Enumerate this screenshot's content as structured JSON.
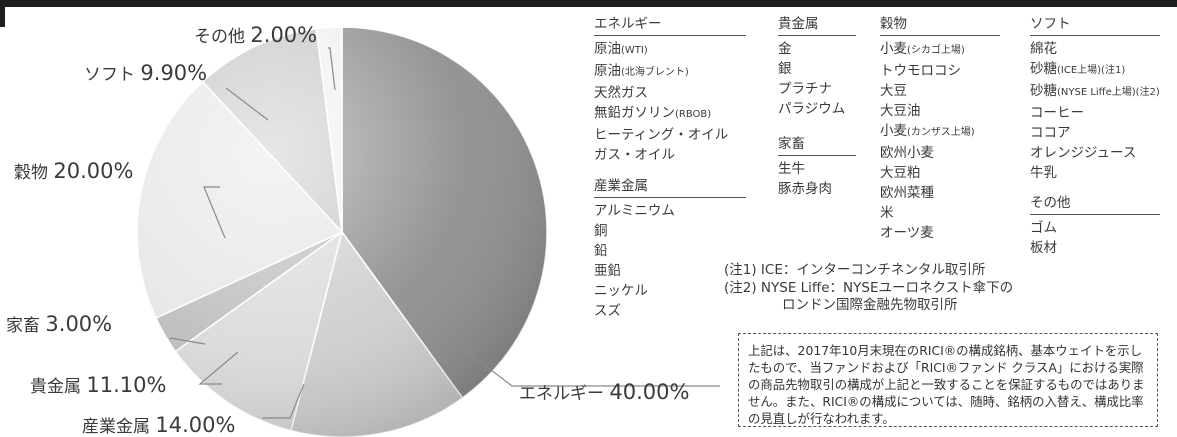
{
  "chart_data": {
    "type": "pie",
    "slices": [
      {
        "label": "エネルギー",
        "value": 40.0,
        "display": "40.00%",
        "color": "#8c8c8c"
      },
      {
        "label": "産業金属",
        "value": 14.0,
        "display": "14.00%",
        "color": "#cdcdcd"
      },
      {
        "label": "貴金属",
        "value": 11.1,
        "display": "11.10%",
        "color": "#dadada"
      },
      {
        "label": "家畜",
        "value": 3.0,
        "display": "3.00%",
        "color": "#bdbdbd"
      },
      {
        "label": "穀物",
        "value": 20.0,
        "display": "20.00%",
        "color": "#e6e6e6"
      },
      {
        "label": "ソフト",
        "value": 9.9,
        "display": "9.90%",
        "color": "#c8c8c8"
      },
      {
        "label": "その他",
        "value": 2.0,
        "display": "2.00%",
        "color": "#f0f0f0"
      }
    ]
  },
  "components": {
    "energy": {
      "title": "エネルギー",
      "items": [
        {
          "text": "原油",
          "sub": "(WTI)"
        },
        {
          "text": "原油",
          "sub": "(北海ブレント)"
        },
        {
          "text": "天然ガス"
        },
        {
          "text": "無鉛ガソリン",
          "sub": "(RBOB)"
        },
        {
          "text": "ヒーティング・オイル"
        },
        {
          "text": "ガス・オイル"
        }
      ]
    },
    "industrial_metals": {
      "title": "産業金属",
      "items": [
        {
          "text": "アルミニウム"
        },
        {
          "text": "銅"
        },
        {
          "text": "鉛"
        },
        {
          "text": "亜鉛"
        },
        {
          "text": "ニッケル"
        },
        {
          "text": "スズ"
        }
      ]
    },
    "precious_metals": {
      "title": "貴金属",
      "items": [
        {
          "text": "金"
        },
        {
          "text": "銀"
        },
        {
          "text": "プラチナ"
        },
        {
          "text": "パラジウム"
        }
      ]
    },
    "livestock": {
      "title": "家畜",
      "items": [
        {
          "text": "生牛"
        },
        {
          "text": "豚赤身肉"
        }
      ]
    },
    "grains": {
      "title": "穀物",
      "items": [
        {
          "text": "小麦",
          "sub": "(シカゴ上場)"
        },
        {
          "text": "トウモロコシ"
        },
        {
          "text": "大豆"
        },
        {
          "text": "大豆油"
        },
        {
          "text": "小麦",
          "sub": "(カンザス上場)"
        },
        {
          "text": "欧州小麦"
        },
        {
          "text": "大豆粕"
        },
        {
          "text": "欧州菜種"
        },
        {
          "text": "米"
        },
        {
          "text": "オーツ麦"
        }
      ]
    },
    "softs": {
      "title": "ソフト",
      "items": [
        {
          "text": "綿花"
        },
        {
          "text": "砂糖",
          "sub": "(ICE上場)(注1)"
        },
        {
          "text": "砂糖",
          "sub": "(NYSE Liffe上場)(注2)"
        },
        {
          "text": "コーヒー"
        },
        {
          "text": "ココア"
        },
        {
          "text": "オレンジジュース"
        },
        {
          "text": "牛乳"
        }
      ]
    },
    "others": {
      "title": "その他",
      "items": [
        {
          "text": "ゴム"
        },
        {
          "text": "板材"
        }
      ]
    }
  },
  "notes": {
    "note1": "(注1) ICE：インターコンチネンタル取引所",
    "note2_line1": "(注2) NYSE Liffe：NYSEユーロネクスト傘下の",
    "note2_line2": "ロンドン国際金融先物取引所"
  },
  "disclaimer": "上記は、2017年10月末現在のRICI®の構成銘柄、基本ウェイトを示したもので、当ファンドおよび「RICI®ファンド クラスA」における実際の商品先物取引の構成が上記と一致することを保証するものではありません。また、RICI®の構成については、随時、銘柄の入替え、構成比率の見直しが行なわれます。"
}
